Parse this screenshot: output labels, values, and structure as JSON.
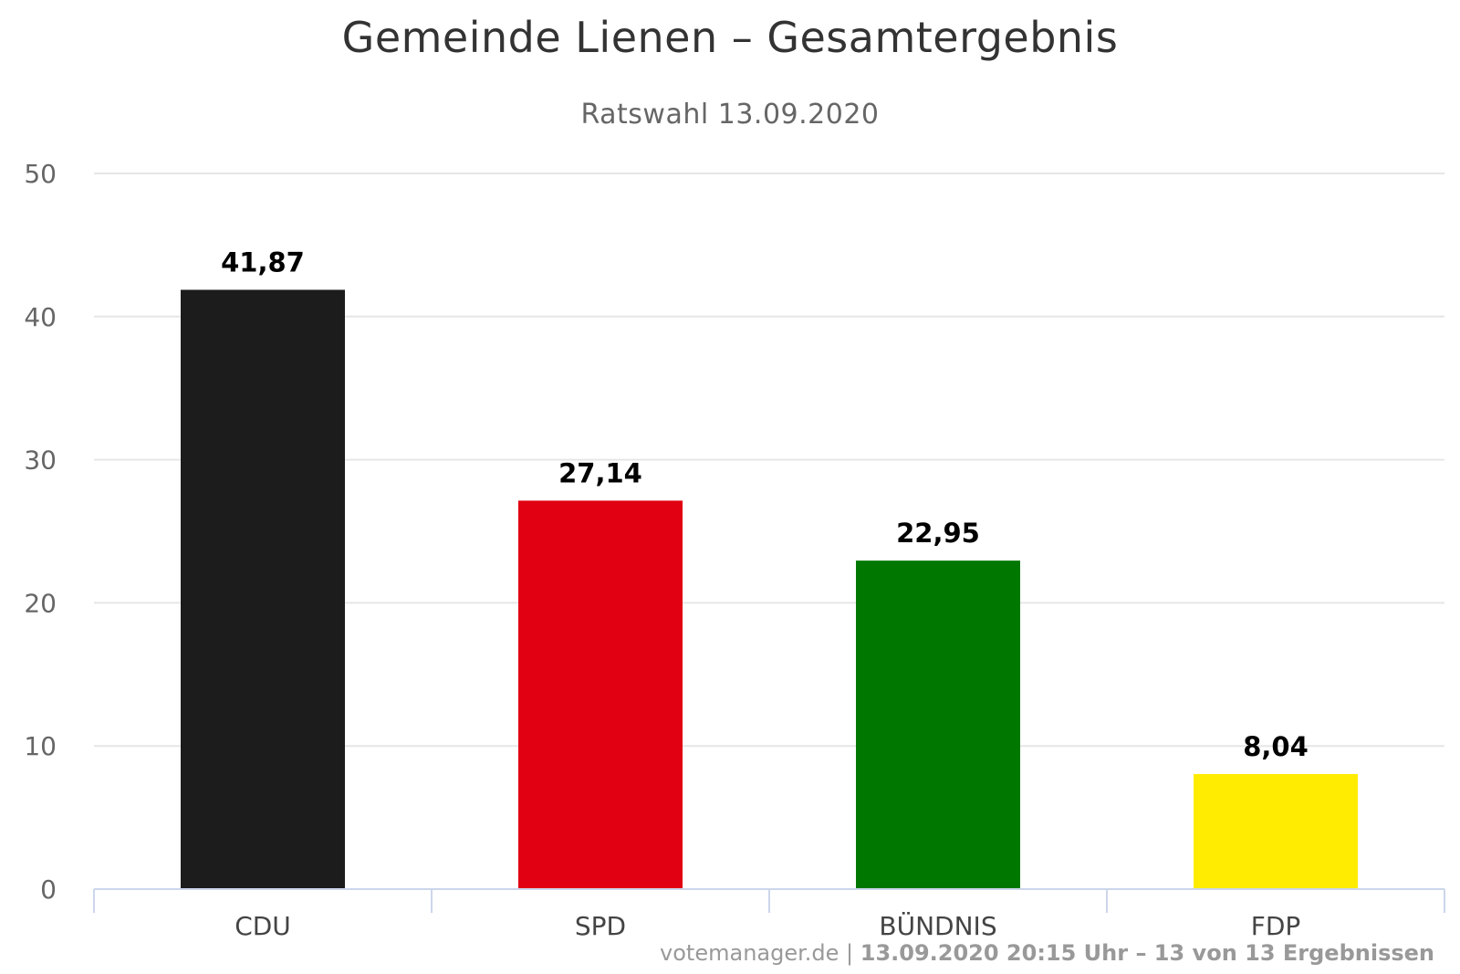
{
  "chart_data": {
    "type": "bar",
    "title": "Gemeinde Lienen – Gesamtergebnis",
    "subtitle": "Ratswahl 13.09.2020",
    "xlabel": "",
    "ylabel": "",
    "categories": [
      "CDU",
      "SPD",
      "BÜNDNIS",
      "FDP"
    ],
    "values": [
      41.87,
      27.14,
      22.95,
      8.04
    ],
    "data_labels": [
      "41,87",
      "27,14",
      "22,95",
      "8,04"
    ],
    "colors": [
      "#1c1c1c",
      "#e10011",
      "#007800",
      "#ffec00"
    ],
    "ylim": [
      0,
      50
    ],
    "yticks": [
      0,
      10,
      20,
      30,
      40,
      50
    ],
    "grid": true,
    "legend": "none"
  },
  "credits": {
    "site": "votemanager.de",
    "separator": " | ",
    "rest": "13.09.2020 20:15 Uhr – 13 von 13 Ergebnissen"
  }
}
